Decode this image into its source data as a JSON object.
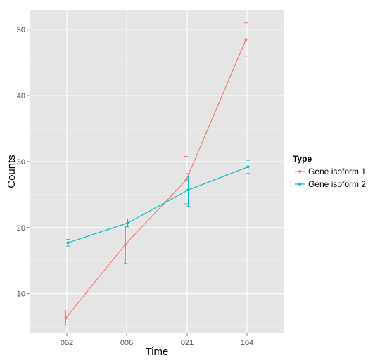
{
  "chart_data": {
    "type": "line",
    "x": [
      "002",
      "006",
      "021",
      "104"
    ],
    "xlabel": "Time",
    "ylabel": "Counts",
    "ylim": [
      4,
      53
    ],
    "yticks": [
      10,
      20,
      30,
      40,
      50
    ],
    "grid": true,
    "legend": {
      "title": "Type",
      "placement": "right"
    },
    "series": [
      {
        "name": "Gene isoform 1",
        "color": "#f8766d",
        "values": [
          6.3,
          17.5,
          27.2,
          48.5
        ],
        "error_low": [
          5.2,
          14.6,
          23.6,
          46.0
        ],
        "error_high": [
          7.4,
          20.2,
          30.8,
          51.0
        ]
      },
      {
        "name": "Gene isoform 2",
        "color": "#00bfc4",
        "values": [
          17.7,
          20.7,
          25.7,
          29.2
        ],
        "error_low": [
          17.2,
          20.1,
          23.2,
          28.2
        ],
        "error_high": [
          18.2,
          21.3,
          28.2,
          30.2
        ]
      }
    ]
  }
}
